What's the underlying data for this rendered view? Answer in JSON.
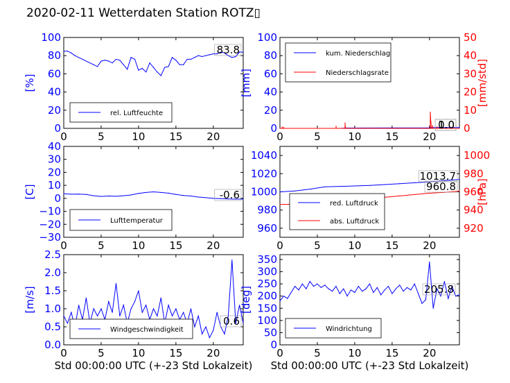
{
  "page": {
    "title": "2020-02-11 Wetterdaten Station ROTZ▯"
  },
  "colors": {
    "primary": "#0000ff",
    "secondary": "#ff0000",
    "axis": "#000000"
  },
  "chart_data": [
    {
      "id": "humidity",
      "type": "line",
      "xlabel": "",
      "ylabel": "[%]",
      "ylabel_color": "#0000ff",
      "xlim": [
        0,
        24
      ],
      "ylim": [
        0,
        100
      ],
      "xticks": [
        "0",
        "5",
        "10",
        "15",
        "20"
      ],
      "yticks": [
        "0",
        "20",
        "40",
        "60",
        "80",
        "100"
      ],
      "grid": false,
      "legend_position": "lower-left",
      "annotations": [
        "83.8"
      ],
      "series": [
        {
          "name": "rel. Luftfeuchte",
          "color": "#0000ff",
          "x": [
            0,
            0.5,
            1,
            1.5,
            2,
            2.5,
            3,
            3.5,
            4,
            4.5,
            5,
            5.5,
            6,
            6.5,
            7,
            7.5,
            8,
            8.5,
            9,
            9.5,
            10,
            10.5,
            11,
            11.5,
            12,
            12.5,
            13,
            13.5,
            14,
            14.5,
            15,
            15.5,
            16,
            16.5,
            17,
            17.5,
            18,
            18.5,
            19,
            19.5,
            20,
            20.5,
            21,
            21.5,
            22,
            22.5,
            23,
            23.5,
            24
          ],
          "y": [
            85,
            85,
            83,
            80,
            78,
            76,
            74,
            72,
            70,
            68,
            74,
            75,
            74,
            72,
            76,
            75,
            70,
            65,
            78,
            76,
            64,
            66,
            62,
            72,
            67,
            62,
            58,
            67,
            68,
            78,
            75,
            70,
            70,
            76,
            76,
            78,
            80,
            79,
            80,
            81,
            82,
            82,
            84,
            83,
            80,
            78,
            79,
            84,
            83.8
          ]
        }
      ]
    },
    {
      "id": "precip",
      "type": "line",
      "xlabel": "",
      "ylabel": "[mm]",
      "ylabel_color": "#0000ff",
      "y2label": "[mm/std]",
      "y2label_color": "#ff0000",
      "xlim": [
        0,
        24
      ],
      "ylim": [
        0,
        100
      ],
      "y2lim": [
        0,
        50
      ],
      "xticks": [
        "0",
        "5",
        "10",
        "15",
        "20"
      ],
      "yticks": [
        "0",
        "20",
        "40",
        "60",
        "80",
        "100"
      ],
      "y2ticks": [
        "0",
        "10",
        "20",
        "30",
        "40",
        "50"
      ],
      "grid": false,
      "legend_position": "upper-left",
      "annotations": [
        "1.0",
        "0.0"
      ],
      "series": [
        {
          "name": "kum. Niederschlag",
          "color": "#0000ff",
          "axis": "left",
          "x": [
            0,
            8,
            8.8,
            20,
            20.2,
            24
          ],
          "y": [
            0,
            0,
            0.4,
            0.6,
            1.0,
            1.0
          ]
        },
        {
          "name": "Niederschlagsrate",
          "color": "#ff0000",
          "axis": "right",
          "x": [
            0,
            0.3,
            0.31,
            0.32,
            0.5,
            0.51,
            0.52,
            7.5,
            7.51,
            7.52,
            8.7,
            8.71,
            8.72,
            8.8,
            20.1,
            20.11,
            20.15,
            20.2,
            20.25,
            20.4,
            20.41,
            20.42,
            21.0,
            21.01,
            21.02,
            24
          ],
          "y": [
            0,
            0,
            0.8,
            0,
            0,
            0.6,
            0,
            0,
            1.2,
            0,
            0,
            3.0,
            1.5,
            0,
            0,
            9,
            5,
            3,
            0,
            0,
            1.5,
            0,
            0,
            0.8,
            0,
            0
          ]
        }
      ]
    },
    {
      "id": "temperature",
      "type": "line",
      "xlabel": "",
      "ylabel": "[C]",
      "ylabel_color": "#0000ff",
      "xlim": [
        0,
        24
      ],
      "ylim": [
        -30,
        40
      ],
      "xticks": [
        "0",
        "5",
        "10",
        "15",
        "20"
      ],
      "yticks": [
        "−30",
        "−20",
        "−10",
        "0",
        "10",
        "20",
        "30",
        "40"
      ],
      "grid": false,
      "legend_position": "lower-left",
      "annotations": [
        "-0.6"
      ],
      "series": [
        {
          "name": "Lufttemperatur",
          "color": "#0000ff",
          "x": [
            0,
            1,
            2,
            3,
            4,
            5,
            6,
            7,
            8,
            9,
            10,
            11,
            12,
            13,
            14,
            15,
            16,
            17,
            18,
            19,
            20,
            21,
            22,
            23,
            24
          ],
          "y": [
            3.5,
            3.2,
            3.3,
            3.0,
            2.0,
            1.5,
            1.8,
            1.6,
            2.0,
            2.6,
            3.8,
            4.5,
            5.0,
            4.5,
            4.0,
            3.0,
            2.2,
            1.8,
            1.0,
            0.5,
            0.0,
            -0.2,
            -0.5,
            -0.6,
            -0.6
          ]
        }
      ]
    },
    {
      "id": "pressure",
      "type": "line",
      "xlabel": "",
      "ylabel": "",
      "y2label": "[hPa]",
      "y2label_color": "#ff0000",
      "xlim": [
        0,
        24
      ],
      "ylim": [
        950,
        1050
      ],
      "y2lim": [
        910,
        1010
      ],
      "xticks": [
        "0",
        "5",
        "10",
        "15",
        "20"
      ],
      "yticks": [
        "960",
        "980",
        "1000",
        "1020",
        "1040"
      ],
      "y2ticks": [
        "920",
        "940",
        "960",
        "980",
        "1000"
      ],
      "grid": false,
      "legend_position": "lower-left",
      "annotations": [
        "1013.7",
        "960.8"
      ],
      "series": [
        {
          "name": "red. Luftdruck",
          "color": "#0000ff",
          "axis": "left",
          "x": [
            0,
            2,
            4,
            6,
            8,
            10,
            12,
            14,
            16,
            18,
            20,
            22,
            24
          ],
          "y": [
            1000,
            1001,
            1003,
            1005.5,
            1006,
            1006.5,
            1007,
            1008,
            1009,
            1010,
            1011,
            1012.5,
            1013.7
          ]
        },
        {
          "name": "abs. Luftdruck",
          "color": "#ff0000",
          "axis": "right",
          "x": [
            0,
            2,
            4,
            6,
            8,
            10,
            12,
            14,
            16,
            18,
            20,
            22,
            24
          ],
          "y": [
            946,
            946.5,
            948,
            950,
            951,
            952,
            953,
            954,
            955.5,
            957,
            958.5,
            959.5,
            960.8
          ]
        }
      ]
    },
    {
      "id": "windspeed",
      "type": "line",
      "xlabel": "Std 00:00:00 UTC (+-23 Std Lokalzeit)",
      "ylabel": "[m/s]",
      "ylabel_color": "#0000ff",
      "xlim": [
        0,
        24
      ],
      "ylim": [
        0,
        2.5
      ],
      "xticks": [
        "0",
        "5",
        "10",
        "15",
        "20"
      ],
      "yticks": [
        "0.0",
        "0.5",
        "1.0",
        "1.5",
        "2.0",
        "2.5"
      ],
      "grid": false,
      "legend_position": "lower-left",
      "annotations": [
        "0.6"
      ],
      "series": [
        {
          "name": "Windgeschwindigkeit",
          "color": "#0000ff",
          "x": [
            0,
            0.5,
            1,
            1.5,
            2,
            2.5,
            3,
            3.5,
            4,
            4.5,
            5,
            5.5,
            6,
            6.5,
            7,
            7.5,
            8,
            8.5,
            9,
            9.5,
            10,
            10.5,
            11,
            11.5,
            12,
            12.5,
            13,
            13.5,
            14,
            14.5,
            15,
            15.5,
            16,
            16.5,
            17,
            17.5,
            18,
            18.5,
            19,
            19.5,
            20,
            20.5,
            21,
            21.5,
            22,
            22.5,
            23,
            23.5,
            24
          ],
          "y": [
            0.8,
            0.6,
            0.9,
            0.5,
            1.1,
            0.7,
            1.3,
            0.6,
            1.0,
            0.8,
            1.0,
            0.7,
            1.2,
            0.9,
            1.7,
            0.8,
            1.1,
            0.6,
            1.0,
            1.2,
            1.5,
            0.9,
            1.1,
            0.7,
            1.0,
            0.8,
            1.3,
            0.6,
            1.1,
            0.8,
            1.0,
            0.7,
            0.9,
            0.6,
            1.0,
            0.5,
            0.8,
            0.3,
            0.5,
            0.2,
            0.4,
            0.9,
            0.5,
            0.3,
            0.8,
            2.35,
            0.6,
            1.1,
            0.6
          ]
        }
      ]
    },
    {
      "id": "winddir",
      "type": "line",
      "xlabel": "Std 00:00:00 UTC (+-23 Std Lokalzeit)",
      "ylabel": "[deg]",
      "ylabel_color": "#0000ff",
      "xlim": [
        0,
        24
      ],
      "ylim": [
        0,
        370
      ],
      "xticks": [
        "0",
        "5",
        "10",
        "15",
        "20"
      ],
      "yticks": [
        "0",
        "50",
        "100",
        "150",
        "200",
        "250",
        "300",
        "350"
      ],
      "grid": false,
      "legend_position": "lower-left",
      "annotations": [
        "205.8"
      ],
      "series": [
        {
          "name": "Windrichtung",
          "color": "#0000ff",
          "x": [
            0,
            0.5,
            1,
            1.5,
            2,
            2.5,
            3,
            3.5,
            4,
            4.5,
            5,
            5.5,
            6,
            6.5,
            7,
            7.5,
            8,
            8.5,
            9,
            9.5,
            10,
            10.5,
            11,
            11.5,
            12,
            12.5,
            13,
            13.5,
            14,
            14.5,
            15,
            15.5,
            16,
            16.5,
            17,
            17.5,
            18,
            18.5,
            19,
            19.5,
            20,
            20.5,
            21,
            21.5,
            22,
            22.5,
            23,
            23.5,
            24
          ],
          "y": [
            180,
            200,
            190,
            215,
            240,
            225,
            250,
            230,
            260,
            240,
            250,
            235,
            245,
            230,
            220,
            240,
            210,
            230,
            200,
            225,
            215,
            240,
            220,
            230,
            250,
            215,
            235,
            205,
            225,
            240,
            210,
            230,
            245,
            220,
            235,
            225,
            250,
            210,
            170,
            185,
            340,
            150,
            230,
            200,
            260,
            190,
            240,
            200,
            205.8
          ]
        }
      ]
    }
  ]
}
